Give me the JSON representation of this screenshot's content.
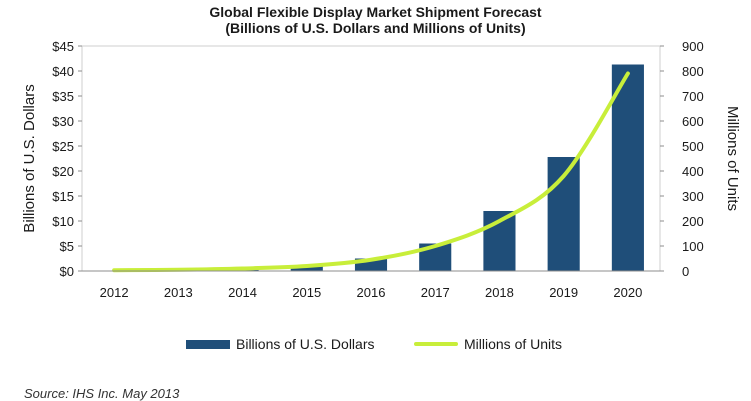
{
  "colors": {
    "bar": "#1f4e79",
    "line": "#c8ee3a",
    "axis": "#8c8c8c",
    "plot_border": "#cfcfcf"
  },
  "chart_data": {
    "type": "bar",
    "title": "Global Flexible Display Market Shipment Forecast",
    "subtitle": "(Billions of U.S. Dollars and Millions of Units)",
    "categories": [
      "2012",
      "2013",
      "2014",
      "2015",
      "2016",
      "2017",
      "2018",
      "2019",
      "2020"
    ],
    "series": [
      {
        "name": "Billions of U.S. Dollars",
        "type": "bar",
        "axis": "left",
        "values": [
          0.1,
          0.2,
          0.4,
          1.2,
          2.5,
          5.5,
          12.0,
          22.8,
          41.3
        ]
      },
      {
        "name": "Millions of Units",
        "type": "line",
        "axis": "right",
        "values": [
          3,
          5,
          10,
          20,
          45,
          100,
          200,
          380,
          790
        ]
      }
    ],
    "ylabel": "Billions of U.S. Dollars",
    "y2label": "Millions of Units",
    "ylim": [
      0,
      45
    ],
    "y2lim": [
      0,
      900
    ],
    "yticks": [
      "$0",
      "$5",
      "$10",
      "$15",
      "$20",
      "$25",
      "$30",
      "$35",
      "$40",
      "$45"
    ],
    "y2ticks": [
      "0",
      "100",
      "200",
      "300",
      "400",
      "500",
      "600",
      "700",
      "800",
      "900"
    ],
    "grid": false,
    "legend_position": "bottom"
  },
  "source": "Source: IHS Inc. May 2013"
}
